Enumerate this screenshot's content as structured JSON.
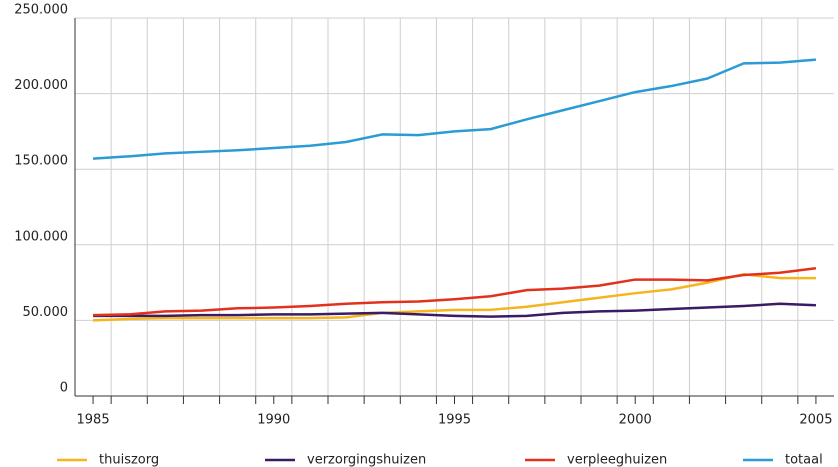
{
  "chart_data": {
    "type": "line",
    "x": [
      1985,
      1986,
      1987,
      1988,
      1989,
      1990,
      1991,
      1992,
      1993,
      1994,
      1995,
      1996,
      1997,
      1998,
      1999,
      2000,
      2001,
      2002,
      2003,
      2004,
      2005
    ],
    "series": [
      {
        "name": "thuiszorg",
        "color": "#f5b51e",
        "values": [
          50000,
          51000,
          51500,
          51500,
          51500,
          51500,
          51500,
          52000,
          55000,
          56000,
          57000,
          57000,
          59000,
          62000,
          65000,
          68000,
          70500,
          75000,
          80500,
          78000,
          78000
        ]
      },
      {
        "name": "verzorgingshuizen",
        "color": "#3b1a66",
        "values": [
          53000,
          53000,
          53000,
          53500,
          53500,
          54000,
          54000,
          54500,
          55000,
          54000,
          53000,
          52500,
          53000,
          55000,
          56000,
          56500,
          57500,
          58500,
          59500,
          61000,
          60000
        ]
      },
      {
        "name": "verpleeghuizen",
        "color": "#e2311d",
        "values": [
          53500,
          54000,
          56000,
          56500,
          58000,
          58500,
          59500,
          61000,
          62000,
          62500,
          64000,
          66000,
          70000,
          71000,
          73000,
          77000,
          77000,
          76500,
          80000,
          81500,
          84500
        ]
      },
      {
        "name": "totaal",
        "color": "#2a9bd4",
        "values": [
          157000,
          158500,
          160500,
          161500,
          162500,
          164000,
          165500,
          168000,
          173000,
          172500,
          175000,
          176500,
          183000,
          189000,
          195000,
          201000,
          205000,
          210000,
          220000,
          220500,
          222500
        ]
      }
    ],
    "xlim": [
      1984.5,
      2005.5
    ],
    "xticks": [
      1985,
      1990,
      1995,
      2000,
      2005
    ],
    "ylim": [
      0,
      250000
    ],
    "yticks": [
      {
        "value": 0,
        "label": "0"
      },
      {
        "value": 50000,
        "label": "50.000"
      },
      {
        "value": 100000,
        "label": "100.000"
      },
      {
        "value": 150000,
        "label": "150.000"
      },
      {
        "value": 200000,
        "label": "200.000"
      },
      {
        "value": 250000,
        "label": "250.000"
      }
    ],
    "grid": true,
    "legend": "bottom"
  }
}
